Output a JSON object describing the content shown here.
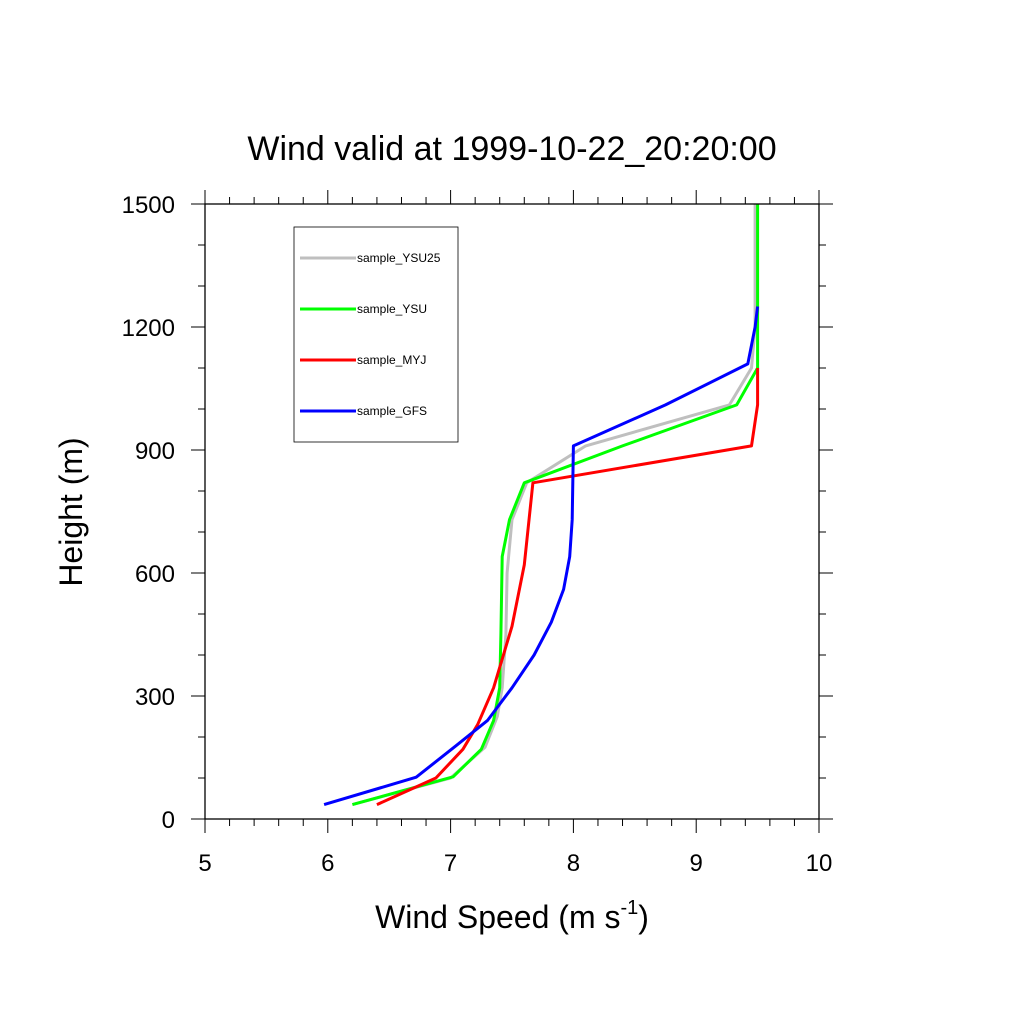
{
  "chart_data": {
    "type": "line",
    "title": "Wind valid at 1999-10-22_20:20:00",
    "xlabel_main": "Wind Speed (m s",
    "xlabel_sup": "-1",
    "xlabel_end": ")",
    "ylabel": "Height (m)",
    "xlim": [
      5,
      10
    ],
    "ylim": [
      0,
      1500
    ],
    "x_ticks": [
      5,
      6,
      7,
      8,
      9,
      10
    ],
    "y_ticks": [
      0,
      300,
      600,
      900,
      1200,
      1500
    ],
    "x_minor_step": 0.2,
    "y_minor_step": 100,
    "grid": false,
    "legend_position": "top-left",
    "series": [
      {
        "name": "sample_YSU25",
        "color": "#bfbfbf",
        "points": [
          [
            6.2,
            35
          ],
          [
            7.0,
            100
          ],
          [
            7.28,
            175
          ],
          [
            7.38,
            250
          ],
          [
            7.42,
            320
          ],
          [
            7.45,
            450
          ],
          [
            7.46,
            600
          ],
          [
            7.5,
            730
          ],
          [
            7.62,
            820
          ],
          [
            8.1,
            910
          ],
          [
            9.27,
            1010
          ],
          [
            9.45,
            1100
          ],
          [
            9.48,
            1200
          ],
          [
            9.48,
            1500
          ]
        ]
      },
      {
        "name": "sample_YSU",
        "color": "#00ff00",
        "points": [
          [
            6.2,
            35
          ],
          [
            7.02,
            103
          ],
          [
            7.25,
            170
          ],
          [
            7.35,
            240
          ],
          [
            7.4,
            320
          ],
          [
            7.41,
            450
          ],
          [
            7.42,
            640
          ],
          [
            7.48,
            730
          ],
          [
            7.6,
            820
          ],
          [
            8.4,
            910
          ],
          [
            9.33,
            1010
          ],
          [
            9.5,
            1100
          ],
          [
            9.5,
            1200
          ],
          [
            9.5,
            1500
          ]
        ]
      },
      {
        "name": "sample_MYJ",
        "color": "#ff0000",
        "points": [
          [
            6.4,
            35
          ],
          [
            6.88,
            100
          ],
          [
            7.1,
            170
          ],
          [
            7.22,
            230
          ],
          [
            7.35,
            320
          ],
          [
            7.5,
            470
          ],
          [
            7.6,
            620
          ],
          [
            7.67,
            820
          ],
          [
            9.45,
            910
          ],
          [
            9.5,
            1010
          ],
          [
            9.5,
            1100
          ]
        ]
      },
      {
        "name": "sample_GFS",
        "color": "#0000ff",
        "points": [
          [
            5.97,
            35
          ],
          [
            6.72,
            102
          ],
          [
            7.05,
            180
          ],
          [
            7.3,
            240
          ],
          [
            7.5,
            320
          ],
          [
            7.68,
            400
          ],
          [
            7.82,
            480
          ],
          [
            7.92,
            560
          ],
          [
            7.97,
            640
          ],
          [
            7.99,
            730
          ],
          [
            8.0,
            910
          ],
          [
            8.75,
            1010
          ],
          [
            9.42,
            1110
          ],
          [
            9.48,
            1200
          ],
          [
            9.5,
            1250
          ]
        ]
      }
    ]
  }
}
